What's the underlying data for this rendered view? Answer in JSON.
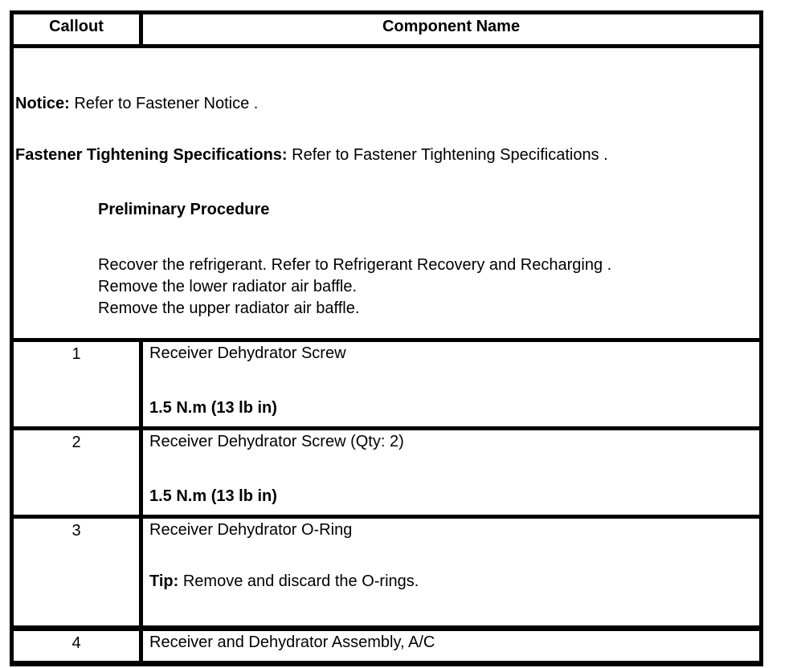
{
  "header": {
    "callout_col": "Callout",
    "component_col": "Component Name"
  },
  "notice_block": {
    "notice_label": "Notice:",
    "notice_text": " Refer to Fastener Notice .",
    "fastener_label": "Fastener Tightening Specifications:",
    "fastener_text": " Refer to Fastener Tightening Specifications .",
    "preliminary_title": "Preliminary Procedure",
    "steps": [
      "Recover the refrigerant. Refer to Refrigerant Recovery and Recharging .",
      "Remove the lower radiator air baffle.",
      "Remove the upper radiator air baffle."
    ]
  },
  "rows": [
    {
      "callout": "1",
      "name": "Receiver Dehydrator Screw",
      "spec": "1.5 N.m (13 lb in)"
    },
    {
      "callout": "2",
      "name": "Receiver Dehydrator Screw (Qty: 2)",
      "spec": "1.5 N.m (13 lb in)"
    },
    {
      "callout": "3",
      "name": "Receiver Dehydrator O-Ring",
      "tip_label": "Tip:",
      "tip_text": " Remove and discard the O-rings."
    },
    {
      "callout": "4",
      "name": "Receiver and Dehydrator Assembly, A/C"
    }
  ],
  "colors": {
    "border": "#000000",
    "text": "#000000",
    "background": "#ffffff"
  }
}
